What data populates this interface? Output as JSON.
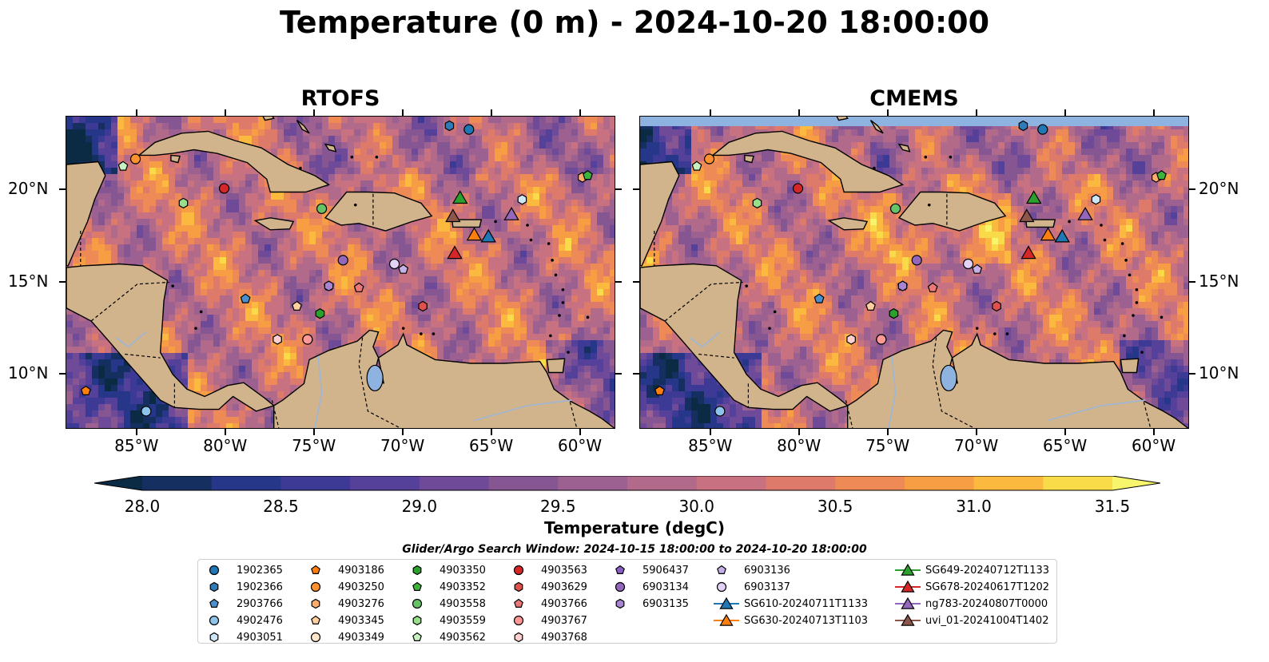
{
  "title": "Temperature (0 m) - 2024-10-20 18:00:00",
  "panels": [
    {
      "title": "RTOFS"
    },
    {
      "title": "CMEMS"
    }
  ],
  "axes": {
    "x_ticks": [
      "85°W",
      "80°W",
      "75°W",
      "70°W",
      "65°W",
      "60°W"
    ],
    "y_ticks": [
      "20°N",
      "15°N",
      "10°N"
    ],
    "lon_range": [
      -89,
      -58
    ],
    "lat_range": [
      7,
      24
    ]
  },
  "colorbar": {
    "label": "Temperature (degC)",
    "ticks": [
      "28.0",
      "28.5",
      "29.0",
      "29.5",
      "30.0",
      "30.5",
      "31.0",
      "31.5"
    ],
    "range": [
      28.0,
      31.5
    ],
    "colors": [
      "#0b2a43",
      "#153060",
      "#26378a",
      "#3d3a95",
      "#55409a",
      "#6e4a98",
      "#865693",
      "#9c6091",
      "#b26a8b",
      "#c87180",
      "#de7a6a",
      "#ee8a55",
      "#f79e44",
      "#fbb93f",
      "#f9da48",
      "#f6f56c"
    ]
  },
  "search_window": "Glider/Argo Search Window: 2024-10-15 18:00:00 to 2024-10-20 18:00:00",
  "colors": {
    "land": "#d2b48c",
    "ocean_mid": "#a86a8c",
    "lake": "#8fb3e0"
  },
  "legend": [
    {
      "label": "1902365",
      "shape": "circle",
      "color": "#1f77b4"
    },
    {
      "label": "1902366",
      "shape": "hexagon",
      "color": "#2f7bb8"
    },
    {
      "label": "2903766",
      "shape": "pentagon",
      "color": "#4a90cf"
    },
    {
      "label": "4902476",
      "shape": "circle",
      "color": "#8ec3ea"
    },
    {
      "label": "4903051",
      "shape": "hexagon",
      "color": "#cfe6f7"
    },
    {
      "label": "4903186",
      "shape": "pentagon",
      "color": "#ff7f0e"
    },
    {
      "label": "4903250",
      "shape": "circle",
      "color": "#ff912e"
    },
    {
      "label": "4903276",
      "shape": "hexagon",
      "color": "#ffae6b"
    },
    {
      "label": "4903345",
      "shape": "pentagon",
      "color": "#ffcfa0"
    },
    {
      "label": "4903349",
      "shape": "circle",
      "color": "#ffe6cc"
    },
    {
      "label": "4903350",
      "shape": "hexagon",
      "color": "#2ca02c"
    },
    {
      "label": "4903352",
      "shape": "pentagon",
      "color": "#3cb43c"
    },
    {
      "label": "4903558",
      "shape": "circle",
      "color": "#66c266"
    },
    {
      "label": "4903559",
      "shape": "hexagon",
      "color": "#98df8a"
    },
    {
      "label": "4903562",
      "shape": "pentagon",
      "color": "#c9f0c0"
    },
    {
      "label": "4903563",
      "shape": "circle",
      "color": "#d62728"
    },
    {
      "label": "4903629",
      "shape": "hexagon",
      "color": "#e0504c"
    },
    {
      "label": "4903766",
      "shape": "pentagon",
      "color": "#ec7777"
    },
    {
      "label": "4903767",
      "shape": "circle",
      "color": "#ff9896"
    },
    {
      "label": "4903768",
      "shape": "hexagon",
      "color": "#ffd0cf"
    },
    {
      "label": "5906437",
      "shape": "pentagon",
      "color": "#8a5ec2"
    },
    {
      "label": "6903134",
      "shape": "circle",
      "color": "#9467bd"
    },
    {
      "label": "6903135",
      "shape": "hexagon",
      "color": "#a983d4"
    },
    {
      "label": "6903136",
      "shape": "pentagon",
      "color": "#c5b0e8"
    },
    {
      "label": "6903137",
      "shape": "circle",
      "color": "#e2d2f6"
    },
    {
      "label": "SG610-20240711T1133",
      "shape": "triangle",
      "color": "#1f77b4"
    },
    {
      "label": "SG630-20240713T1103",
      "shape": "triangle",
      "color": "#ff7f0e"
    },
    {
      "label": "SG649-20240712T1133",
      "shape": "triangle",
      "color": "#2ca02c"
    },
    {
      "label": "SG678-20240617T1202",
      "shape": "triangle",
      "color": "#d62728"
    },
    {
      "label": "ng783-20240807T0000",
      "shape": "triangle",
      "color": "#9467bd"
    },
    {
      "label": "uvi_01-20241004T1402",
      "shape": "triangle",
      "color": "#8c564b"
    }
  ],
  "markers": [
    {
      "id": "1902365",
      "lon": -66.3,
      "lat": 23.3
    },
    {
      "id": "1902366",
      "lon": -67.4,
      "lat": 23.5
    },
    {
      "id": "2903766",
      "lon": -78.9,
      "lat": 14.1
    },
    {
      "id": "4902476",
      "lon": -84.5,
      "lat": 8.0
    },
    {
      "id": "4903051",
      "lon": -63.3,
      "lat": 19.5
    },
    {
      "id": "4903186",
      "lon": -87.9,
      "lat": 9.1
    },
    {
      "id": "4903250",
      "lon": -85.1,
      "lat": 21.7
    },
    {
      "id": "4903276",
      "lon": -59.9,
      "lat": 20.7
    },
    {
      "id": "4903345",
      "lon": -76.0,
      "lat": 13.7
    },
    {
      "id": "4903349",
      "lon": -75.4,
      "lat": 11.9
    },
    {
      "id": "4903350",
      "lon": -74.7,
      "lat": 13.3
    },
    {
      "id": "4903352",
      "lon": -59.6,
      "lat": 20.8
    },
    {
      "id": "4903558",
      "lon": -74.6,
      "lat": 19.0
    },
    {
      "id": "4903559",
      "lon": -82.4,
      "lat": 19.3
    },
    {
      "id": "4903562",
      "lon": -85.8,
      "lat": 21.3
    },
    {
      "id": "4903563",
      "lon": -80.1,
      "lat": 20.1
    },
    {
      "id": "4903629",
      "lon": -68.9,
      "lat": 13.7
    },
    {
      "id": "4903766",
      "lon": -72.5,
      "lat": 14.7
    },
    {
      "id": "4903767",
      "lon": -75.4,
      "lat": 11.9
    },
    {
      "id": "4903768",
      "lon": -77.1,
      "lat": 11.9
    },
    {
      "id": "5906437",
      "lon": -74.2,
      "lat": 14.8
    },
    {
      "id": "6903134",
      "lon": -73.4,
      "lat": 16.2
    },
    {
      "id": "6903135",
      "lon": -74.2,
      "lat": 14.8
    },
    {
      "id": "6903136",
      "lon": -70.0,
      "lat": 15.7
    },
    {
      "id": "6903137",
      "lon": -70.5,
      "lat": 16.0
    },
    {
      "id": "SG610-20240711T1133",
      "lon": -65.2,
      "lat": 17.5
    },
    {
      "id": "SG630-20240713T1103",
      "lon": -66.0,
      "lat": 17.6
    },
    {
      "id": "SG649-20240712T1133",
      "lon": -66.8,
      "lat": 19.6
    },
    {
      "id": "SG678-20240617T1202",
      "lon": -67.1,
      "lat": 16.6
    },
    {
      "id": "ng783-20240807T0000",
      "lon": -63.9,
      "lat": 18.7
    },
    {
      "id": "uvi_01-20241004T1402",
      "lon": -67.2,
      "lat": 18.6
    }
  ]
}
